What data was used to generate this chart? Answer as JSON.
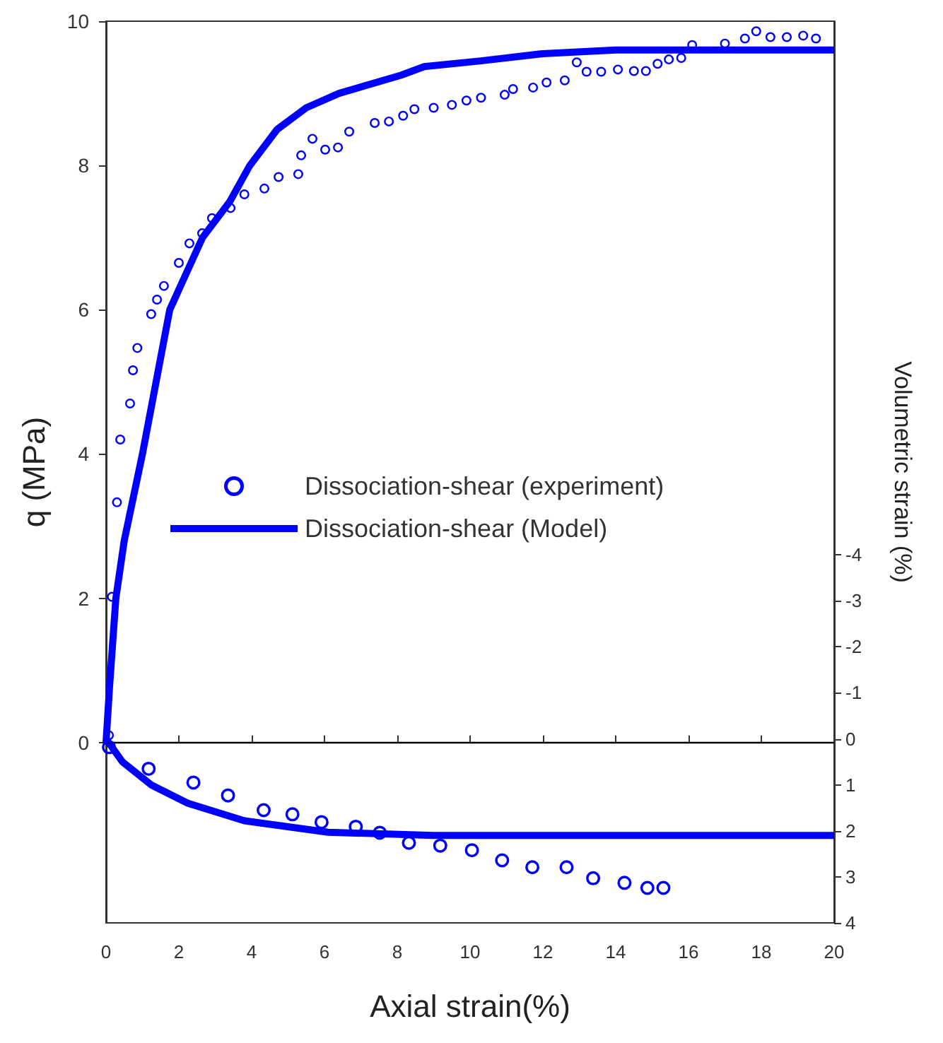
{
  "chart_data": {
    "type": "scatter",
    "xlabel": "Axial strain(%)",
    "ylabel": "q (MPa)",
    "y2label": "Volumetric strain (%)",
    "xlim": [
      0,
      20
    ],
    "xticks": [
      0,
      2,
      4,
      6,
      8,
      10,
      12,
      14,
      16,
      18,
      20
    ],
    "ylim": [
      -2.5,
      10
    ],
    "yticks": [
      0,
      2,
      4,
      6,
      8,
      10
    ],
    "y2lim": [
      4,
      -15.6
    ],
    "y2ticks": [
      -4,
      -3,
      -2,
      -1,
      0,
      1,
      2,
      3,
      4
    ],
    "grid": false,
    "legend": "center left",
    "ref_lines": [
      {
        "axis": "y",
        "value": 0,
        "color": "#000000"
      }
    ],
    "series": [
      {
        "name": "Dissociation-shear (experiment)",
        "marker": "circle",
        "color": "#0000ff",
        "x": [
          0.08,
          0.16,
          0.3,
          0.39,
          0.66,
          0.74,
          0.86,
          1.24,
          1.4,
          1.59,
          2.0,
          2.29,
          2.64,
          2.91,
          3.42,
          3.8,
          4.35,
          4.74,
          5.28,
          5.36,
          5.67,
          6.02,
          6.37,
          6.68,
          7.38,
          7.77,
          8.16,
          8.47,
          9.0,
          9.5,
          9.9,
          10.3,
          10.95,
          11.18,
          11.73,
          12.1,
          12.6,
          12.93,
          13.2,
          13.6,
          14.06,
          14.5,
          14.83,
          15.15,
          15.46,
          15.8,
          16.1,
          17.0,
          17.55,
          17.86,
          18.25,
          18.7,
          19.15,
          19.5
        ],
        "values": [
          0.1,
          2.02,
          3.33,
          4.2,
          4.7,
          5.16,
          5.47,
          5.94,
          6.14,
          6.33,
          6.65,
          6.92,
          7.06,
          7.27,
          7.41,
          7.6,
          7.68,
          7.84,
          7.88,
          8.14,
          8.37,
          8.22,
          8.25,
          8.47,
          8.59,
          8.61,
          8.69,
          8.78,
          8.8,
          8.84,
          8.9,
          8.94,
          8.98,
          9.06,
          9.08,
          9.15,
          9.18,
          9.43,
          9.3,
          9.3,
          9.33,
          9.31,
          9.31,
          9.41,
          9.47,
          9.49,
          9.67,
          9.69,
          9.76,
          9.86,
          9.78,
          9.78,
          9.8,
          9.76
        ]
      },
      {
        "name": "Dissociation-shear (Model)",
        "type": "line",
        "marker": "none",
        "color": "#0000ff",
        "x": [
          0,
          0.1,
          0.27,
          0.5,
          1.0,
          1.75,
          2.65,
          3.4,
          3.95,
          4.7,
          5.5,
          6.4,
          8.1,
          8.74,
          10.3,
          12,
          14,
          16,
          20
        ],
        "values": [
          0,
          0.8,
          2,
          2.8,
          4,
          6,
          7,
          7.5,
          8,
          8.5,
          8.8,
          9,
          9.25,
          9.37,
          9.45,
          9.55,
          9.6,
          9.6,
          9.6
        ]
      },
      {
        "axis": "y2",
        "marker": "circle",
        "color": "#0000ff",
        "x": [
          0.08,
          1.17,
          2.4,
          3.35,
          4.33,
          5.12,
          5.92,
          6.86,
          7.52,
          8.32,
          9.18,
          10.05,
          10.88,
          11.71,
          12.65,
          13.38,
          14.24,
          14.87,
          15.31
        ],
        "values": [
          0.18,
          0.65,
          0.95,
          1.23,
          1.55,
          1.64,
          1.81,
          1.91,
          2.04,
          2.26,
          2.32,
          2.42,
          2.64,
          2.79,
          2.79,
          3.03,
          3.13,
          3.24,
          3.24
        ]
      },
      {
        "type": "line",
        "axis": "y2",
        "marker": "none",
        "color": "#0000ff",
        "x": [
          0,
          0.45,
          1.24,
          2.25,
          3.8,
          6.1,
          9,
          12,
          16,
          20
        ],
        "values": [
          0,
          0.5,
          1.0,
          1.4,
          1.78,
          2.03,
          2.1,
          2.1,
          2.1,
          2.1
        ]
      }
    ]
  }
}
